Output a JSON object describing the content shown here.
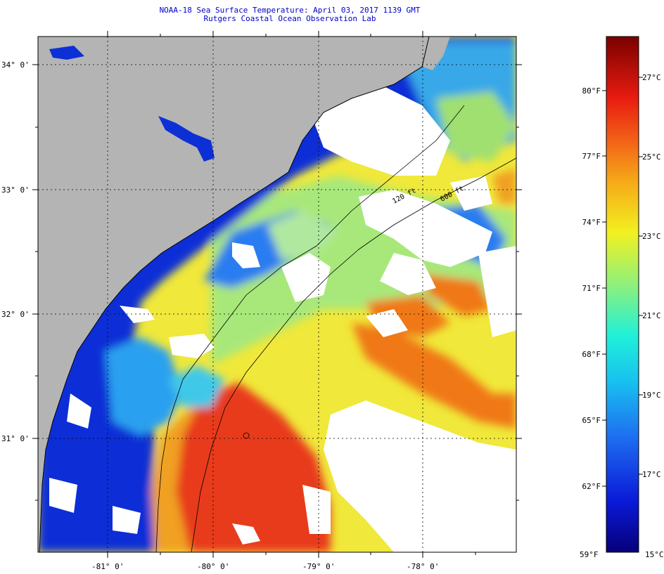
{
  "title": {
    "line1": "NOAA-18 Sea Surface Temperature:  April 03, 2017 1139 GMT",
    "line2": "Rutgers Coastal Ocean Observation Lab"
  },
  "map": {
    "lat_labels": [
      "34° 0'",
      "33° 0'",
      "32° 0'",
      "31° 0'"
    ],
    "lon_labels": [
      "-81° 0'",
      "-80° 0'",
      "-79° 0'",
      "-78° 0'"
    ],
    "isobath_labels": [
      "120 ft",
      "600 ft"
    ],
    "colors": {
      "land": "#b4b4b4",
      "cloud": "#ffffff",
      "cold": "#0d2fd6",
      "cool": "#2b7df0",
      "mid": "#7fe0c0",
      "warm": "#f2ea2a",
      "hot": "#f07818",
      "hottest": "#e8321a"
    }
  },
  "colorbar": {
    "f_labels": [
      "80°F",
      "77°F",
      "74°F",
      "71°F",
      "68°F",
      "65°F",
      "62°F"
    ],
    "c_labels": [
      "27°C",
      "25°C",
      "23°C",
      "21°C",
      "19°C",
      "17°C"
    ],
    "min_f": "59°F",
    "min_c": "15°C"
  }
}
